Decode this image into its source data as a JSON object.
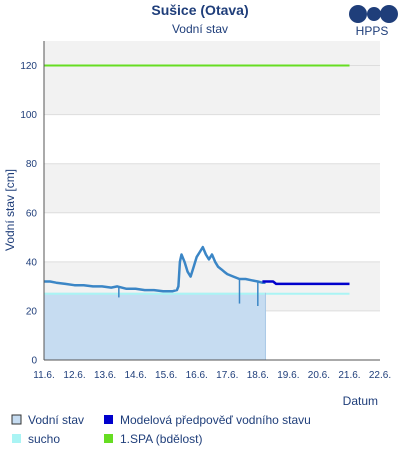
{
  "chart_data": {
    "type": "line",
    "title": "Sušice (Otava)",
    "subtitle": "Vodní stav",
    "xlabel": "Datum",
    "ylabel": "Vodní stav [cm]",
    "ylim": [
      0,
      130
    ],
    "yticks": [
      0,
      20,
      40,
      60,
      80,
      100,
      120
    ],
    "xlim": [
      11.6,
      22.6
    ],
    "xticks": [
      "11.6.",
      "12.6.",
      "13.6.",
      "14.6.",
      "15.6.",
      "16.6.",
      "17.6.",
      "18.6.",
      "19.6.",
      "20.6.",
      "21.6.",
      "22.6."
    ],
    "grid": true,
    "legend_position": "bottom",
    "series": [
      {
        "name": "Vodní stav",
        "color": "#3b86c6",
        "fill": "#c6dcf1",
        "x": [
          11.6,
          11.8,
          12.0,
          12.3,
          12.6,
          12.9,
          13.2,
          13.5,
          13.8,
          14.0,
          14.3,
          14.6,
          14.9,
          15.2,
          15.5,
          15.8,
          15.95,
          16.0,
          16.05,
          16.1,
          16.2,
          16.3,
          16.4,
          16.5,
          16.6,
          16.7,
          16.8,
          16.9,
          17.0,
          17.1,
          17.2,
          17.3,
          17.4,
          17.5,
          17.6,
          17.8,
          18.0,
          18.2,
          18.4,
          18.6,
          18.75,
          18.85
        ],
        "values": [
          32,
          32,
          31.5,
          31,
          30.5,
          30.5,
          30,
          30,
          29.5,
          30,
          29,
          29,
          28.5,
          28.5,
          28,
          28,
          28.5,
          30,
          40,
          43,
          40,
          36,
          34,
          38,
          42,
          44,
          46,
          43,
          41,
          43,
          40,
          38,
          37,
          36,
          35,
          34,
          33,
          33,
          32.5,
          32,
          31.5,
          31.5
        ]
      },
      {
        "name": "Modelová předpověď vodního stavu",
        "color": "#0000cc",
        "x": [
          18.75,
          19.1,
          19.2,
          21.6
        ],
        "values": [
          32,
          32,
          31,
          31
        ]
      },
      {
        "name": "sucho",
        "color": "#aaf4f4",
        "x": [
          11.6,
          21.6
        ],
        "values": [
          27,
          27
        ]
      },
      {
        "name": "1.SPA (bdělost)",
        "color": "#66dd22",
        "x": [
          11.6,
          21.6
        ],
        "values": [
          120,
          120
        ]
      }
    ],
    "dips": [
      {
        "x": 14.05,
        "values": [
          29.5,
          25.5
        ]
      },
      {
        "x": 18.0,
        "values": [
          33,
          23
        ]
      },
      {
        "x": 18.6,
        "values": [
          32,
          22
        ]
      }
    ]
  },
  "logo": {
    "text": "HPPS",
    "color": "#1f3e7a"
  }
}
